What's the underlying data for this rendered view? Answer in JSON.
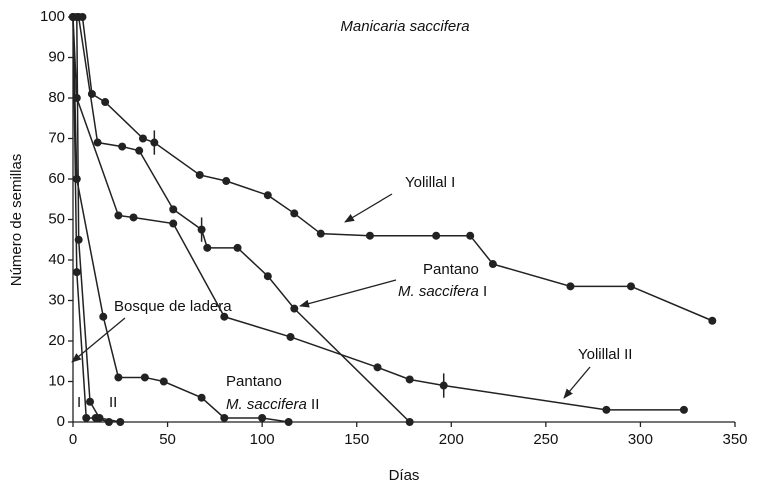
{
  "chart_data": {
    "type": "line",
    "title": "Manicaria saccifera",
    "x_label": "Días",
    "y_label": "Número de semillas",
    "xlim": [
      0,
      350
    ],
    "xticks": [
      0,
      50,
      100,
      150,
      200,
      250,
      300,
      350
    ],
    "ylim": [
      0,
      100
    ],
    "yticks": [
      0,
      10,
      20,
      30,
      40,
      50,
      60,
      70,
      80,
      90,
      100
    ],
    "color": "#222222",
    "series": [
      {
        "x": [
          5,
          10,
          17,
          37,
          43,
          67,
          81,
          103,
          117,
          131,
          157,
          192,
          210,
          222,
          263,
          295,
          338
        ],
        "values": [
          100,
          81,
          79,
          70,
          69,
          61,
          59.5,
          56,
          51.5,
          46.5,
          46,
          46,
          46,
          39,
          33.5,
          33.5,
          25
        ]
      },
      {
        "x": [
          3,
          13,
          26,
          35,
          53,
          68,
          71,
          87,
          103,
          117,
          178
        ],
        "values": [
          100,
          69,
          68,
          67,
          52.5,
          47.5,
          43,
          43,
          36,
          28,
          0
        ]
      },
      {
        "x": [
          0,
          2,
          24,
          32,
          53,
          80,
          115,
          161,
          178,
          196,
          282,
          323
        ],
        "values": [
          100,
          80,
          51,
          50.5,
          49,
          26,
          21,
          13.5,
          10.5,
          9,
          3,
          3
        ]
      },
      {
        "x": [
          0,
          2,
          16,
          24,
          38,
          48,
          68,
          80,
          100,
          114
        ],
        "values": [
          100,
          60,
          26,
          11,
          11,
          10,
          6,
          1,
          1,
          0
        ]
      },
      {
        "x": [
          0,
          2,
          7,
          12,
          19
        ],
        "values": [
          100,
          37,
          1,
          1,
          0
        ]
      },
      {
        "x": [
          2,
          3,
          9,
          14,
          25
        ],
        "values": [
          100,
          45,
          5,
          1,
          0
        ]
      }
    ],
    "error_bars": [
      {
        "x": 43,
        "y": 69,
        "err": 3
      },
      {
        "x": 68,
        "y": 47.5,
        "err": 3
      },
      {
        "x": 196,
        "y": 9,
        "err": 3
      }
    ],
    "annotations": {
      "yolillal_1": "Yolillal I",
      "pantano_1": [
        "Pantano",
        "M. saccifera",
        "I"
      ],
      "bosque": "Bosque de ladera",
      "yolillal_2": "Yolillal II",
      "pantano_2": [
        "Pantano",
        "M. saccifera",
        "II"
      ],
      "line_1": "I",
      "line_2": "II"
    }
  }
}
